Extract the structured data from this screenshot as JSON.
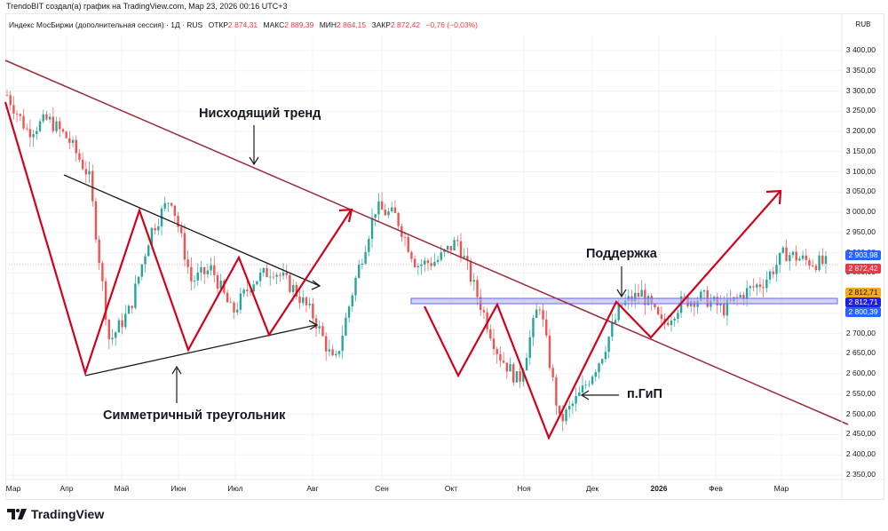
{
  "header": {
    "credit": "TrendoBIT создал(а) график на TradingView.com, Мар 23, 2026 00:16 UTC+3",
    "symbol": "Индекс МосБиржи (дополнительная сессия) · 1Д · RUS",
    "open_label": "ОТКР",
    "open": "2 874,31",
    "high_label": "МАКС",
    "high": "2 889,39",
    "low_label": "МИН",
    "low": "2 864,15",
    "close_label": "ЗАКР",
    "close": "2 872,42",
    "change": "−0,76 (−0,03%)"
  },
  "price_axis": {
    "currency": "RUB",
    "ticks": [
      "3 400,00",
      "3 350,00",
      "3 300,00",
      "3 250,00",
      "3 200,00",
      "3 150,00",
      "3 100,00",
      "3 050,00",
      "3 000,00",
      "2 950,00",
      "2 900,00",
      "2 850,00",
      "2 800,00",
      "2 750,00",
      "2 700,00",
      "2 650,00",
      "2 600,00",
      "2 550,00",
      "2 500,00",
      "2 450,00",
      "2 400,00",
      "2 350,00"
    ],
    "tags": [
      {
        "value": "2 903,98",
        "color": "#2962ff"
      },
      {
        "value": "2 872,42",
        "color": "#f23645"
      },
      {
        "value": "2 812,71",
        "color": "#f5a623"
      },
      {
        "value": "2 812,71",
        "color": "#1e1ee6"
      },
      {
        "value": "2 800,39",
        "color": "#2962ff"
      }
    ]
  },
  "time_axis": {
    "labels": [
      "Мар",
      "Апр",
      "Май",
      "Июн",
      "Июл",
      "Авг",
      "Сен",
      "Окт",
      "Ноя",
      "Дек",
      "2026",
      "Фев",
      "Мар"
    ]
  },
  "annotations": {
    "downtrend": "Нисходящий тренд",
    "triangle": "Симметричный треугольник",
    "support": "Поддержка",
    "ihs": "п.ГиП"
  },
  "branding": {
    "logo_text": "TradingView"
  },
  "colors": {
    "up": "#26a69a",
    "down": "#ef5350",
    "trendline": "#9c2b3a",
    "pattern": "#d0021b",
    "support_zone": "#7b7bf0"
  },
  "chart_data": {
    "type": "candlestick",
    "title": "Индекс МосБиржи (дополнительная сессия) · 1Д",
    "xlabel": "",
    "ylabel": "RUB",
    "ylim": [
      2330,
      3420
    ],
    "x": [
      "Мар 2025",
      "Апр",
      "Май",
      "Июн",
      "Июл",
      "Авг",
      "Сен",
      "Окт",
      "Ноя",
      "Дек",
      "2026",
      "Фев",
      "Мар 2026"
    ],
    "close_path": [
      3290,
      3200,
      3230,
      3180,
      3090,
      2680,
      2760,
      2950,
      3040,
      2830,
      2860,
      2750,
      2830,
      2860,
      2810,
      2740,
      2620,
      2830,
      3010,
      2990,
      2870,
      2880,
      2930,
      2790,
      2650,
      2580,
      2780,
      2480,
      2550,
      2640,
      2770,
      2800,
      2720,
      2780,
      2790,
      2760,
      2800,
      2830,
      2900,
      2880,
      2872.42
    ],
    "last_close": 2872.42,
    "levels": {
      "support_zone": [
        2800.39,
        2812.71
      ],
      "last_high_tag": 2903.98
    },
    "annotations": [
      "Нисходящий тренд",
      "Симметричный треугольник",
      "Поддержка",
      "п.ГиП"
    ]
  }
}
